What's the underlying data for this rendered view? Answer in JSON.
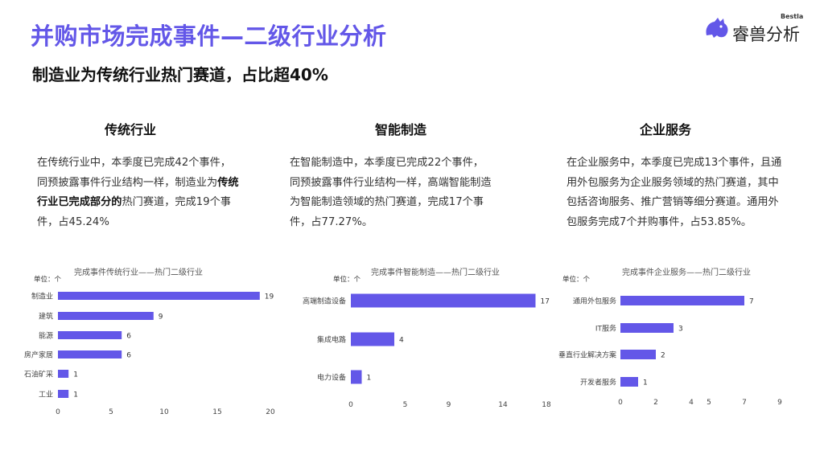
{
  "header": {
    "title": "并购市场完成事件—二级行业分析",
    "subtitle": "制造业为传统行业热门赛道，占比超40%"
  },
  "logo": {
    "brand_cn": "睿兽分析",
    "brand_en": "Bestla"
  },
  "columns": [
    {
      "heading": "传统行业",
      "text_parts": [
        "在传统行业中，本季度已完成42个事件，同预披露事件行业结构一样，制造业为",
        "传统行业已完成部分的",
        "热门赛道，完成19个事件，占45.24%"
      ]
    },
    {
      "heading": "智能制造",
      "text_parts": [
        "在智能制造中，本季度已完成22个事件，同预披露事件行业结构一样，高端智能制造为智能制造领域的热门赛道，完成17个事件，占77.27%。",
        "",
        ""
      ]
    },
    {
      "heading": "企业服务",
      "text_parts": [
        "在企业服务中，本季度已完成13个事件，且通用外包服务为企业服务领域的热门赛道，其中包括咨询服务、推广营销等细分赛道。通用外包服务完成7个并购事件，占53.85%。",
        "",
        ""
      ]
    }
  ],
  "chart_data": [
    {
      "type": "bar",
      "orientation": "horizontal",
      "title": "完成事件传统行业——热门二级行业",
      "unit_label": "单位：个",
      "categories": [
        "制造业",
        "建筑",
        "能源",
        "房产家居",
        "石油矿采",
        "工业"
      ],
      "values": [
        19,
        9,
        6,
        6,
        1,
        1
      ],
      "xlim": [
        0,
        20
      ],
      "xticks": [
        0,
        5,
        10,
        15,
        20
      ],
      "color": "#6357e8"
    },
    {
      "type": "bar",
      "orientation": "horizontal",
      "title": "完成事件智能制造——热门二级行业",
      "unit_label": "单位：个",
      "categories": [
        "高端制造设备",
        "集成电路",
        "电力设备"
      ],
      "values": [
        17,
        4,
        1
      ],
      "xlim": [
        0,
        18
      ],
      "xticks": [
        0,
        5,
        9,
        14,
        18
      ],
      "color": "#6357e8"
    },
    {
      "type": "bar",
      "orientation": "horizontal",
      "title": "完成事件企业服务——热门二级行业",
      "unit_label": "单位：个",
      "categories": [
        "通用外包服务",
        "IT服务",
        "垂直行业解决方案",
        "开发者服务"
      ],
      "values": [
        7,
        3,
        2,
        1
      ],
      "xlim": [
        0,
        9
      ],
      "xticks": [
        0,
        2,
        4,
        5,
        7,
        9
      ],
      "color": "#6357e8"
    }
  ],
  "colors": {
    "accent": "#6357e8",
    "text": "#333333"
  }
}
